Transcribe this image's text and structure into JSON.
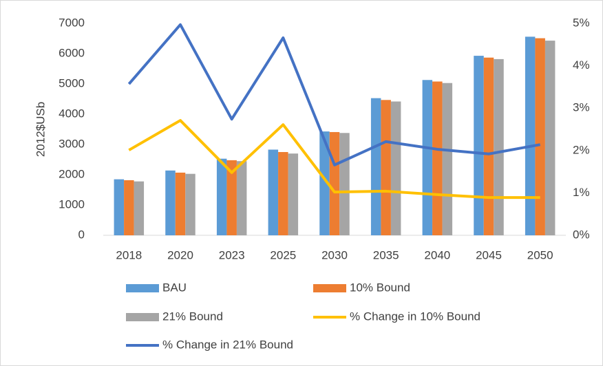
{
  "chart_data": {
    "type": "bar_line",
    "y_label": "2012$USb",
    "categories": [
      "2018",
      "2020",
      "2023",
      "2025",
      "2030",
      "2035",
      "2040",
      "2045",
      "2050"
    ],
    "ylim": [
      0,
      7000
    ],
    "yticks": [
      0,
      1000,
      2000,
      3000,
      4000,
      5000,
      6000,
      7000
    ],
    "y2lim": [
      0,
      5
    ],
    "y2ticks": [
      {
        "value": 0,
        "label": "0%"
      },
      {
        "value": 1,
        "label": "1%"
      },
      {
        "value": 2,
        "label": "2%"
      },
      {
        "value": 3,
        "label": "3%"
      },
      {
        "value": 4,
        "label": "4%"
      },
      {
        "value": 5,
        "label": "5%"
      }
    ],
    "grid": false,
    "series": [
      {
        "name": "BAU",
        "type": "bar",
        "color": "#5b9bd5",
        "values": [
          1850,
          2140,
          2530,
          2830,
          3430,
          4530,
          5130,
          5930,
          6560
        ]
      },
      {
        "name": "10% Bound",
        "type": "bar",
        "color": "#ed7d31",
        "values": [
          1820,
          2070,
          2480,
          2750,
          3410,
          4470,
          5080,
          5870,
          6510
        ]
      },
      {
        "name": "21% Bound",
        "type": "bar",
        "color": "#a5a5a5",
        "values": [
          1780,
          2030,
          2450,
          2700,
          3380,
          4420,
          5030,
          5820,
          6430
        ]
      },
      {
        "name": "% Change in 10% Bound",
        "type": "line",
        "axis": "y2",
        "color": "#ffc000",
        "values": [
          2.01,
          2.71,
          1.48,
          2.61,
          1.02,
          1.04,
          0.96,
          0.89,
          0.89
        ]
      },
      {
        "name": "% Change in 21% Bound",
        "type": "line",
        "axis": "y2",
        "color": "#4472c4",
        "values": [
          3.57,
          4.97,
          2.74,
          4.66,
          1.66,
          2.21,
          2.03,
          1.92,
          2.14
        ]
      }
    ]
  }
}
